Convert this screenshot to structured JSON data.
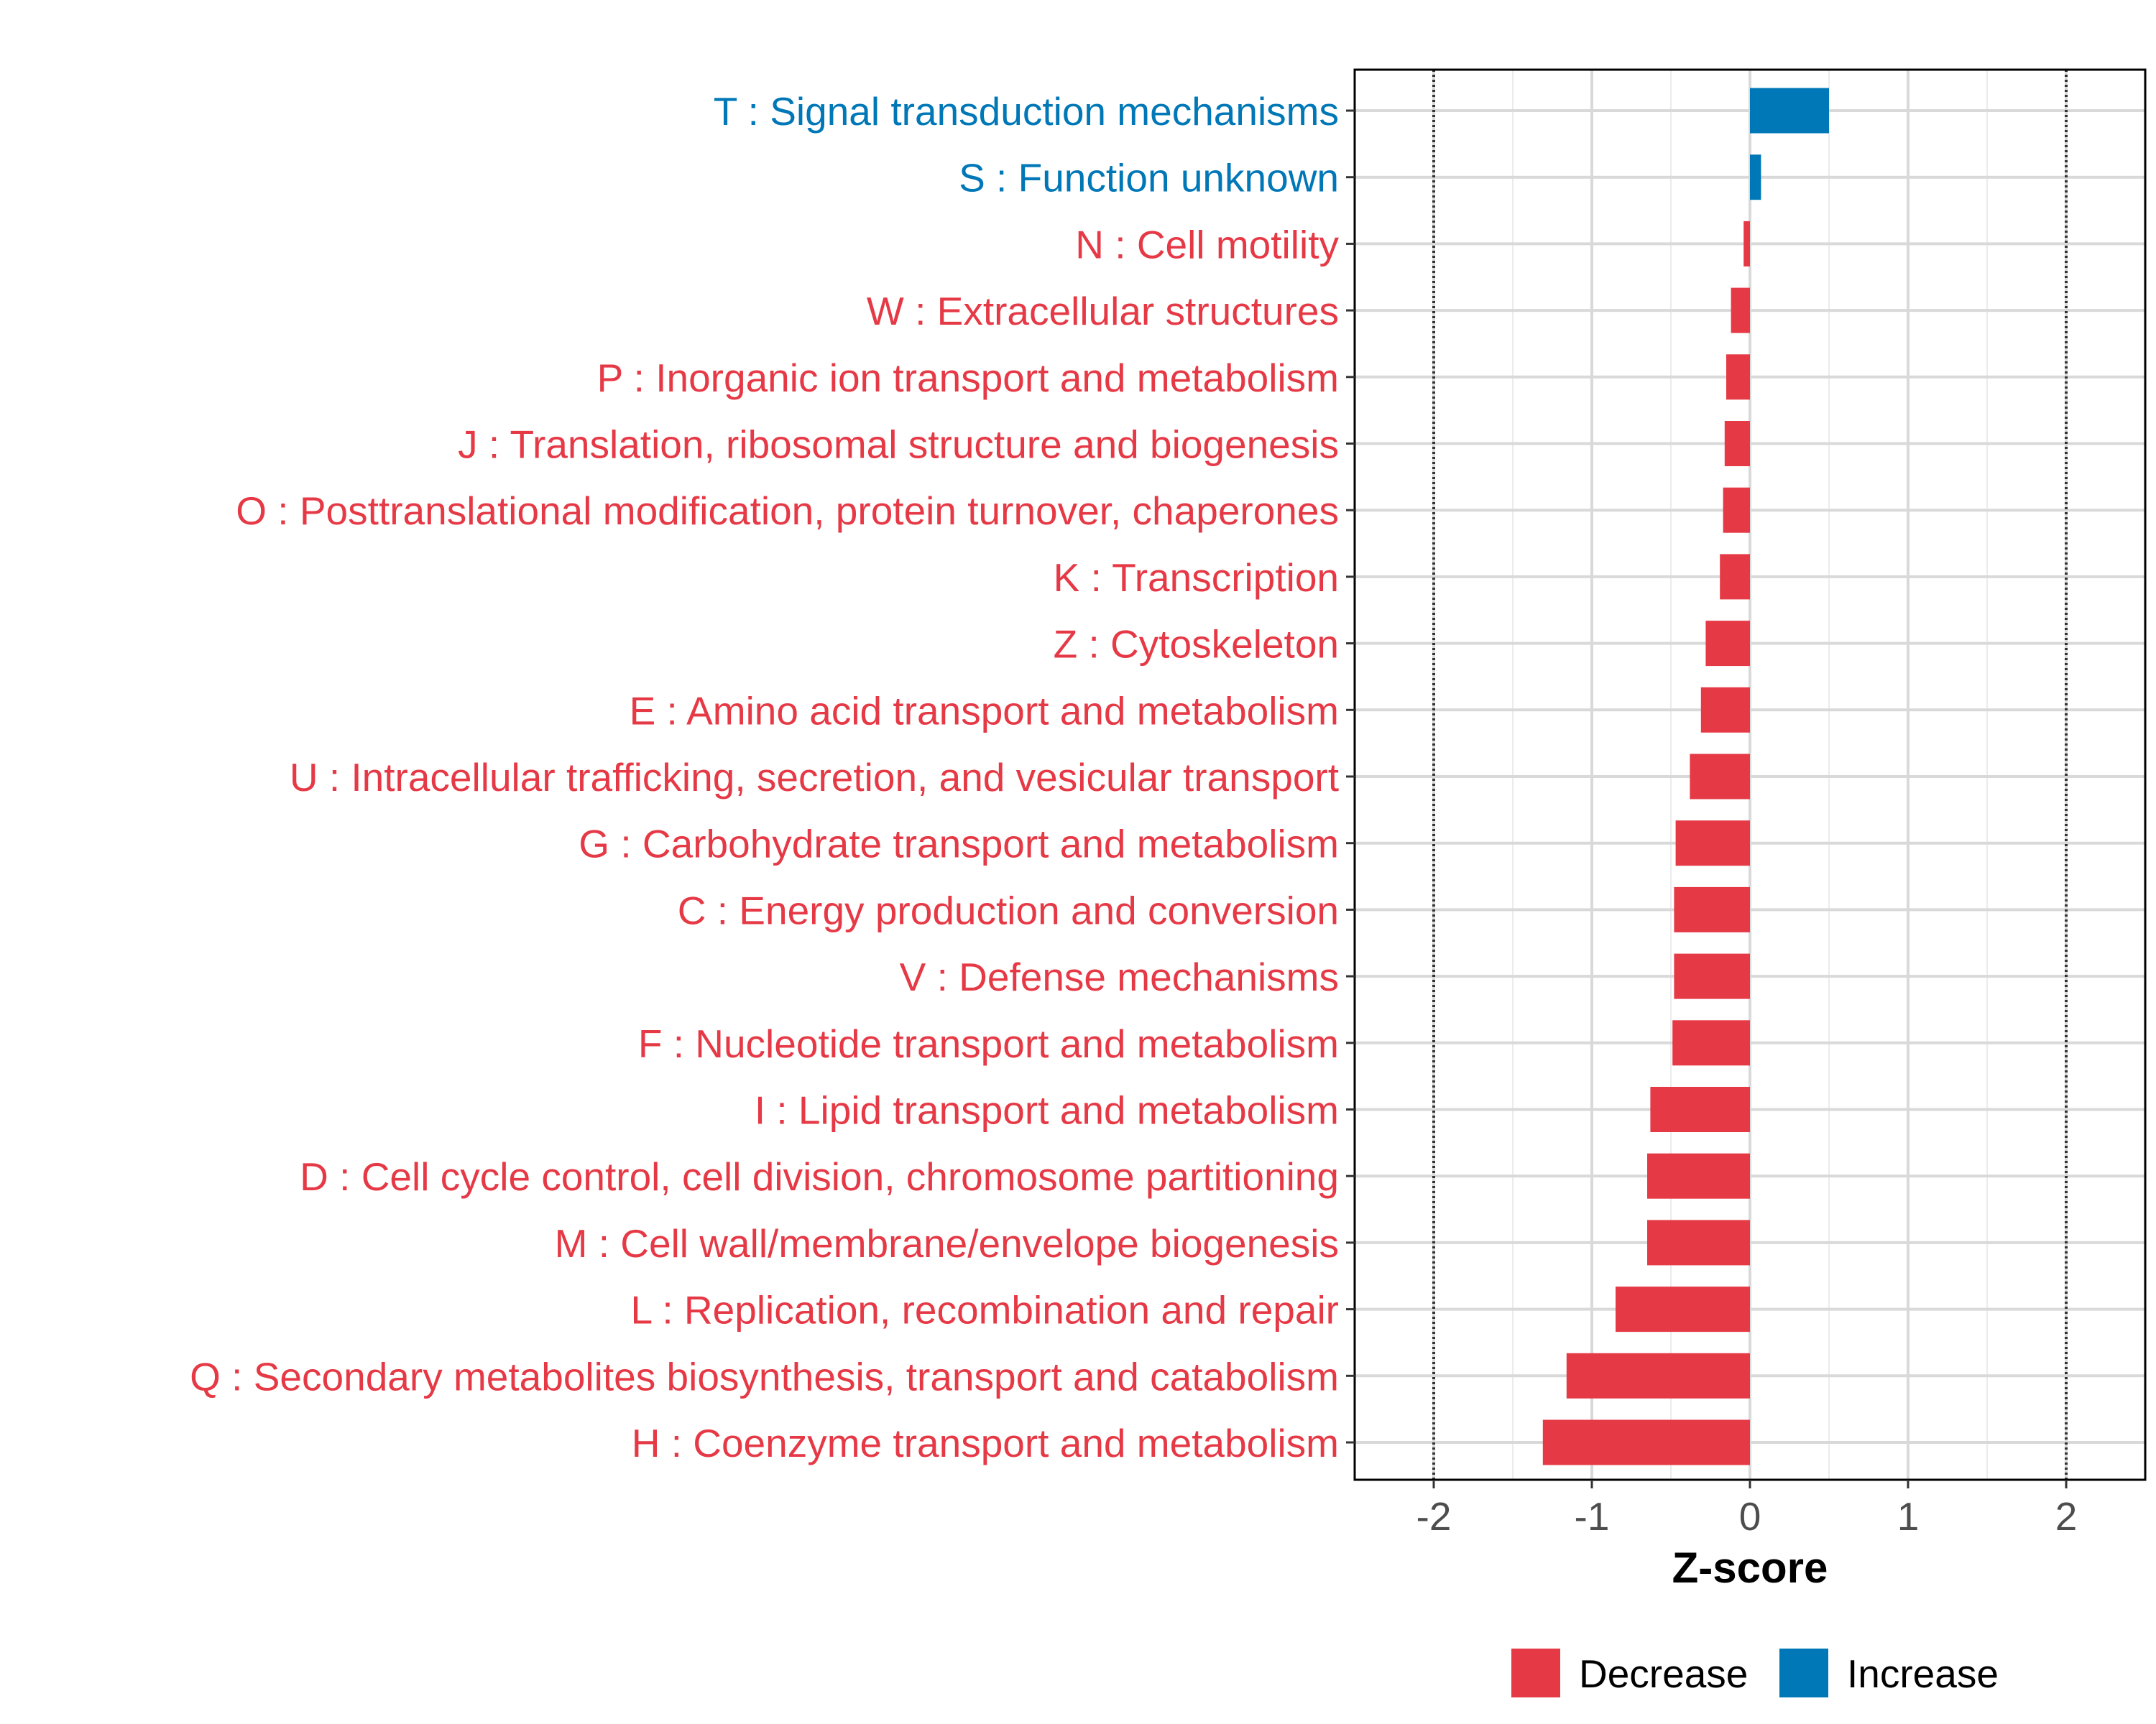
{
  "chart_data": {
    "type": "bar",
    "orientation": "horizontal",
    "xlabel": "Z-score",
    "xlim": [
      -2.5,
      2.5
    ],
    "xticks": [
      -2,
      -1,
      0,
      1,
      2
    ],
    "tick_labels": [
      "-2",
      "-1",
      "0",
      "1",
      "2"
    ],
    "reference_lines": [
      -2,
      2
    ],
    "colors": {
      "Decrease": "#E63946",
      "Increase": "#0077B6"
    },
    "legend": {
      "placement": "bottom",
      "entries": [
        "Decrease",
        "Increase"
      ]
    },
    "categories": [
      "T : Signal transduction mechanisms",
      "S : Function unknown",
      "N : Cell motility",
      "W : Extracellular structures",
      "P : Inorganic ion transport and metabolism",
      "J : Translation, ribosomal structure and biogenesis",
      "O : Posttranslational modification, protein turnover, chaperones",
      "K : Transcription",
      "Z : Cytoskeleton",
      "E : Amino acid transport and metabolism",
      "U : Intracellular trafficking, secretion, and vesicular transport",
      "G : Carbohydrate transport and metabolism",
      "C : Energy production and conversion",
      "V : Defense mechanisms",
      "F : Nucleotide transport and metabolism",
      "I : Lipid transport and metabolism",
      "D : Cell cycle control, cell division, chromosome partitioning",
      "M : Cell wall/membrane/envelope biogenesis",
      "L : Replication, recombination and repair",
      "Q : Secondary metabolites biosynthesis, transport and catabolism",
      "H : Coenzyme transport and metabolism"
    ],
    "values": [
      0.5,
      0.07,
      -0.04,
      -0.12,
      -0.15,
      -0.16,
      -0.17,
      -0.19,
      -0.28,
      -0.31,
      -0.38,
      -0.47,
      -0.48,
      -0.48,
      -0.49,
      -0.63,
      -0.65,
      -0.65,
      -0.85,
      -1.16,
      -1.31
    ],
    "groups": [
      "Increase",
      "Increase",
      "Decrease",
      "Decrease",
      "Decrease",
      "Decrease",
      "Decrease",
      "Decrease",
      "Decrease",
      "Decrease",
      "Decrease",
      "Decrease",
      "Decrease",
      "Decrease",
      "Decrease",
      "Decrease",
      "Decrease",
      "Decrease",
      "Decrease",
      "Decrease",
      "Decrease"
    ]
  }
}
